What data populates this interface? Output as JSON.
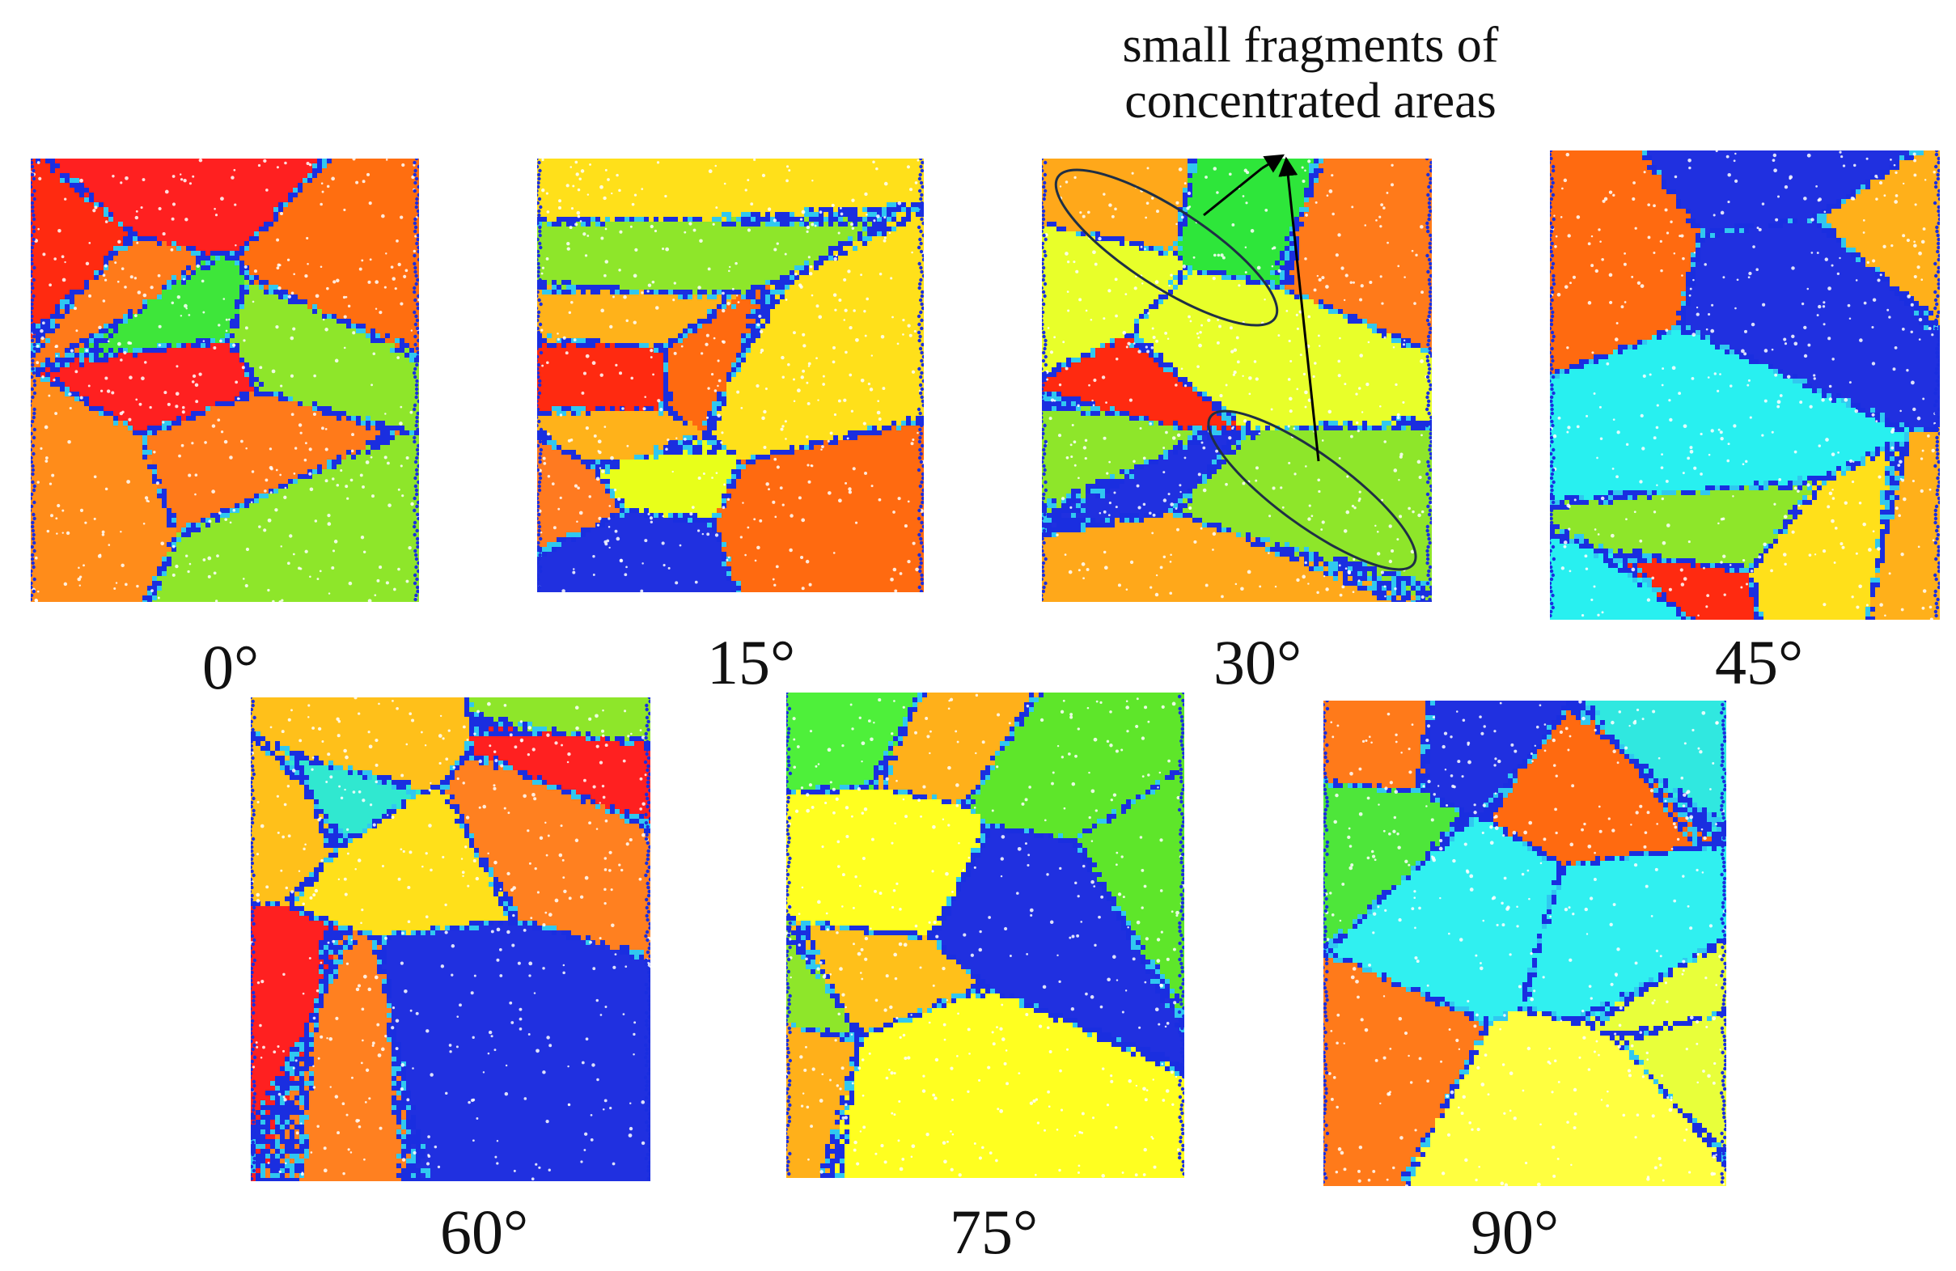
{
  "annotation": {
    "line1": "small fragments  of",
    "line2": "concentrated areas"
  },
  "panels": [
    {
      "id": "p0",
      "label": "0°",
      "seed": 11,
      "grains": [
        "#ff7a1a",
        "#ff2020",
        "#8ee62a",
        "#ff8c1a",
        "#ff2a10",
        "#ff6e10",
        "#3ee63a"
      ]
    },
    {
      "id": "p15",
      "label": "15°",
      "seed": 23,
      "grains": [
        "#ffb21a",
        "#ffe01a",
        "#ff6a10",
        "#e8ff1a",
        "#2030e0",
        "#ff2a10",
        "#ff7a20",
        "#8ee62a"
      ]
    },
    {
      "id": "p30",
      "label": "30°",
      "seed": 37,
      "grains": [
        "#8ee62a",
        "#ffa81a",
        "#e8ff2a",
        "#ff2a10",
        "#2030e0",
        "#2ee63a",
        "#ff7a1a"
      ]
    },
    {
      "id": "p45",
      "label": "45°",
      "seed": 41,
      "grains": [
        "#28f0f0",
        "#ffb01a",
        "#2030e0",
        "#ff6a10",
        "#ff2a10",
        "#8ee62a",
        "#ffe01a"
      ]
    },
    {
      "id": "p60",
      "label": "60°",
      "seed": 53,
      "grains": [
        "#ffc01a",
        "#ff2020",
        "#ff8020",
        "#30e8d0",
        "#2030e0",
        "#8ee62a",
        "#ffe01a"
      ]
    },
    {
      "id": "p75",
      "label": "75°",
      "seed": 67,
      "grains": [
        "#ffff20",
        "#5ee62a",
        "#ffb01a",
        "#4ef03a",
        "#2030e0",
        "#ffc01a",
        "#8ee62a"
      ]
    },
    {
      "id": "p90",
      "label": "90°",
      "seed": 79,
      "grains": [
        "#30f0f0",
        "#e8ff3a",
        "#ff7a1a",
        "#2030e0",
        "#ff6a10",
        "#ffff40",
        "#30e8e0",
        "#4ee63a"
      ]
    }
  ]
}
